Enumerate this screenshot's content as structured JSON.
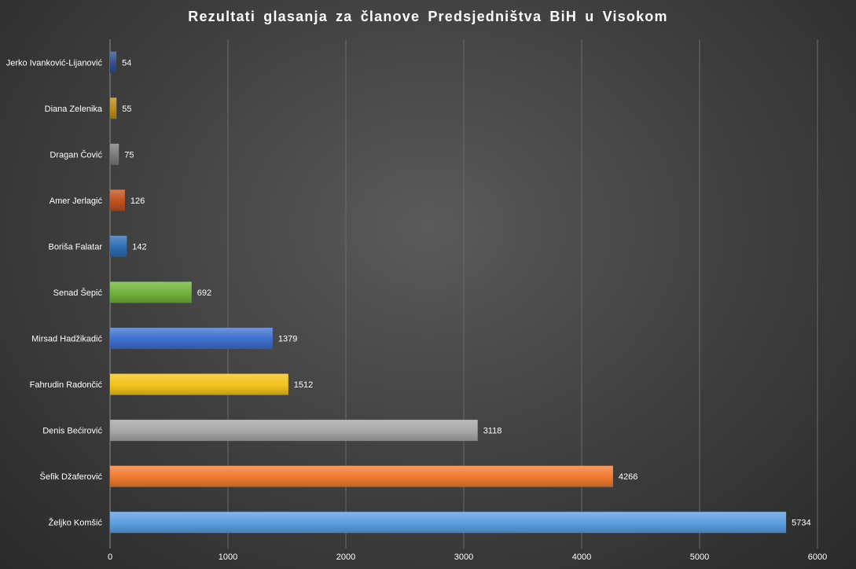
{
  "chart_data": {
    "type": "bar",
    "orientation": "horizontal",
    "title": "Rezultati glasanja za članove Predsjedništva BiH u Visokom",
    "xlabel": "",
    "ylabel": "",
    "xlim": [
      0,
      6000
    ],
    "x_ticks": [
      0,
      1000,
      2000,
      3000,
      4000,
      5000,
      6000
    ],
    "grid": true,
    "legend": "none",
    "categories": [
      "Jerko Ivanković-Lijanović",
      "Diana Zelenika",
      "Dragan Čović",
      "Amer Jerlagić",
      "Boriša Falatar",
      "Senad Šepić",
      "Mirsad Hadžikadić",
      "Fahrudin Radončić",
      "Denis Bećirović",
      "Šefik Džaferović",
      "Željko Komšić"
    ],
    "values": [
      54,
      55,
      75,
      126,
      142,
      692,
      1379,
      1512,
      3118,
      4266,
      5734
    ],
    "colors": [
      "#2f4e8a",
      "#b88a1a",
      "#7a7a7a",
      "#c0501c",
      "#2c6cb0",
      "#6fb13a",
      "#3e6fd0",
      "#f2c21b",
      "#a6a6a6",
      "#f07a2f",
      "#5b9ee0"
    ]
  }
}
